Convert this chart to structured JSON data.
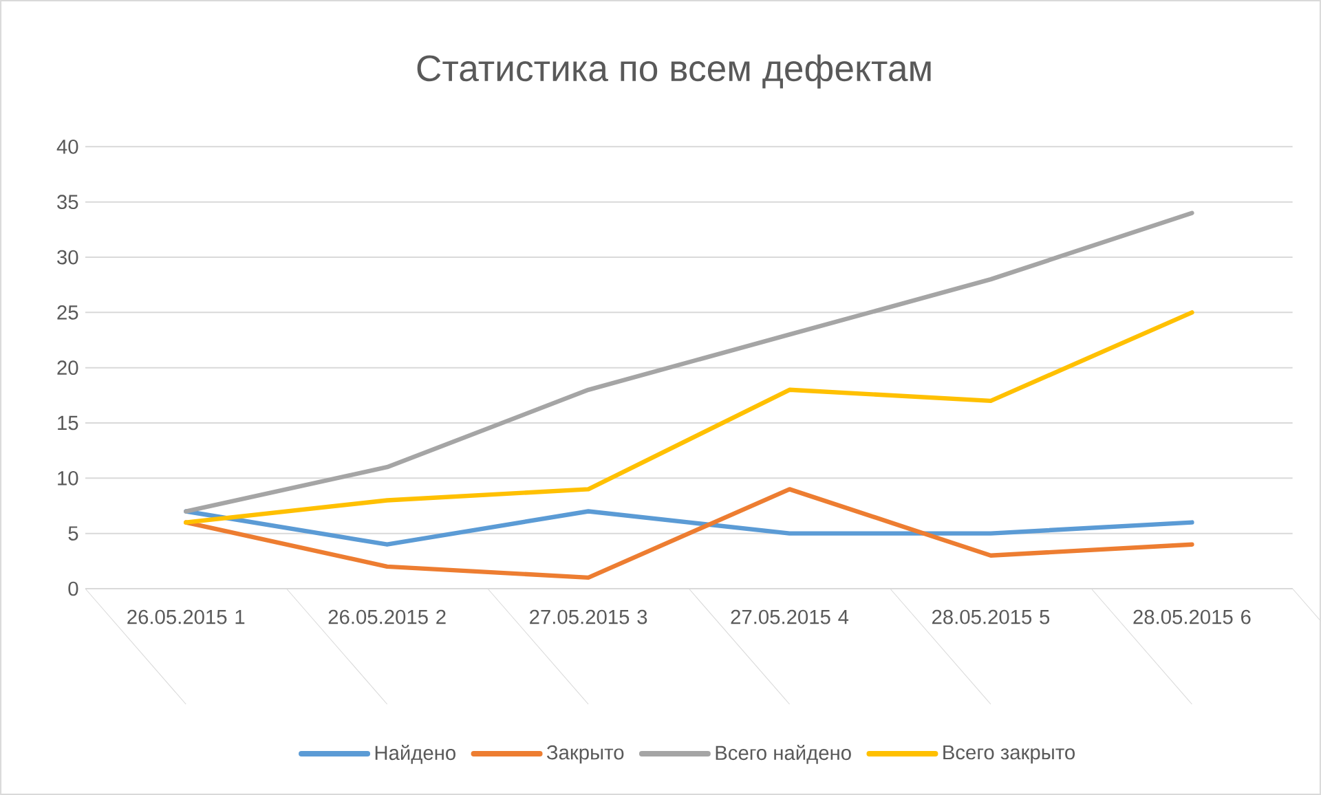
{
  "chart_data": {
    "type": "line",
    "title": "Статистика по всем дефектам",
    "categories": [
      "26.05.2015 1",
      "26.05.2015 2",
      "27.05.2015 3",
      "27.05.2015 4",
      "28.05.2015 5",
      "28.05.2015 6"
    ],
    "series": [
      {
        "name": "Найдено",
        "color": "#5b9bd5",
        "values": [
          7,
          4,
          7,
          5,
          5,
          6
        ]
      },
      {
        "name": "Закрыто",
        "color": "#ed7d31",
        "values": [
          6,
          2,
          1,
          9,
          3,
          4
        ]
      },
      {
        "name": "Всего найдено",
        "color": "#a5a5a5",
        "values": [
          7,
          11,
          18,
          23,
          28,
          34
        ]
      },
      {
        "name": "Всего закрыто",
        "color": "#ffc000",
        "values": [
          6,
          8,
          9,
          18,
          17,
          25
        ]
      }
    ],
    "ylim": [
      0,
      40
    ],
    "yticks": [
      0,
      5,
      10,
      15,
      20,
      25,
      30,
      35,
      40
    ],
    "grid": "y",
    "legend": "bottom"
  }
}
